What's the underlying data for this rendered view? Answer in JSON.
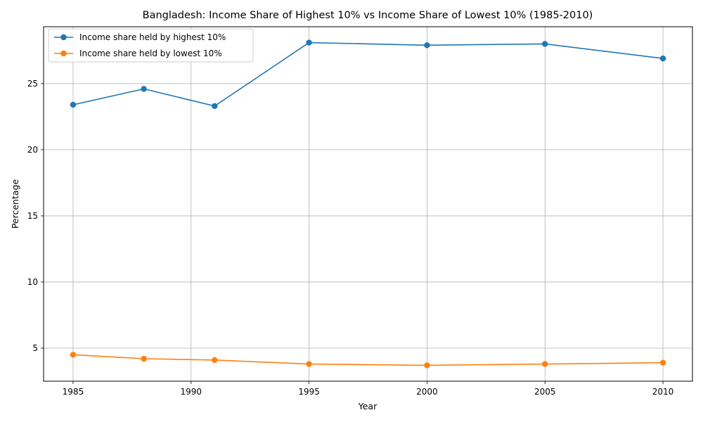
{
  "chart_data": {
    "type": "line",
    "title": "Bangladesh: Income Share of Highest 10% vs Income Share of Lowest 10% (1985-2010)",
    "xlabel": "Year",
    "ylabel": "Percentage",
    "x": [
      1985,
      1988,
      1991,
      1995,
      2000,
      2005,
      2010
    ],
    "xlim": [
      1983.75,
      2011.25
    ],
    "ylim": [
      2.5,
      29.3
    ],
    "xticks": [
      "1985",
      "1990",
      "1995",
      "2000",
      "2005",
      "2010"
    ],
    "yticks": [
      "5",
      "10",
      "15",
      "20",
      "25"
    ],
    "grid": true,
    "legend_position": "top-left",
    "series": [
      {
        "name": "Income share held by highest 10%",
        "color": "#1f77b4",
        "values": [
          23.4,
          24.6,
          23.3,
          28.1,
          27.9,
          28.0,
          26.9
        ]
      },
      {
        "name": "Income share held by lowest 10%",
        "color": "#ff7f0e",
        "values": [
          4.5,
          4.2,
          4.1,
          3.8,
          3.7,
          3.8,
          3.9
        ]
      }
    ]
  }
}
